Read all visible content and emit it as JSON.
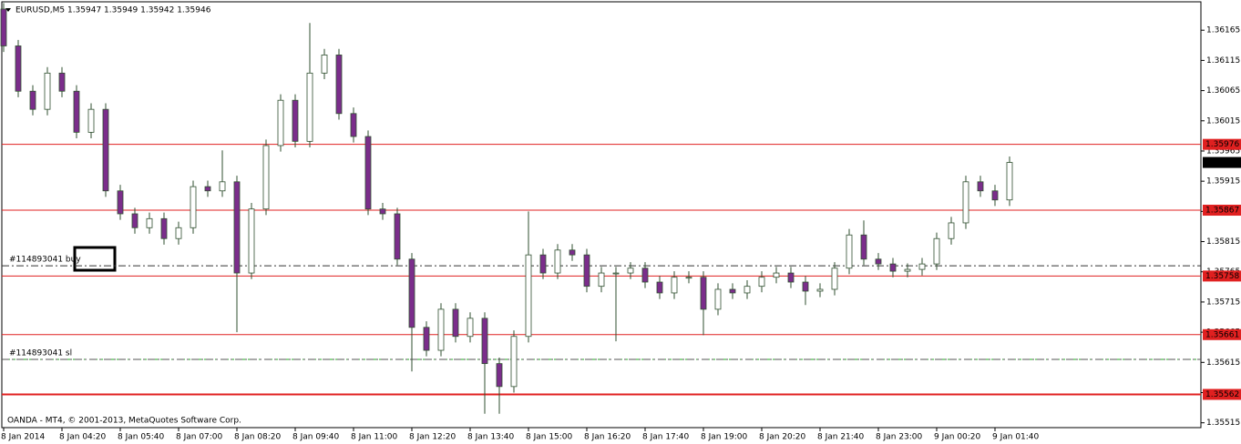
{
  "chart_data": {
    "type": "candlestick",
    "title": "EURUSD,M5  1.35947 1.35949 1.35942 1.35946",
    "footer": "OANDA - MT4, © 2001-2013, MetaQuotes Software Corp.",
    "categories": [
      "8 Jan 2014",
      null,
      null,
      null,
      "8 Jan 04:20",
      null,
      null,
      null,
      "8 Jan 05:40",
      null,
      null,
      null,
      "8 Jan 07:00",
      null,
      null,
      null,
      "8 Jan 08:20",
      null,
      null,
      null,
      "8 Jan 09:40",
      null,
      null,
      null,
      "8 Jan 11:00",
      null,
      null,
      null,
      "8 Jan 12:20",
      null,
      null,
      null,
      "8 Jan 13:40",
      null,
      null,
      null,
      "8 Jan 15:00",
      null,
      null,
      null,
      "8 Jan 16:20",
      null,
      null,
      null,
      "8 Jan 17:40",
      null,
      null,
      null,
      "8 Jan 19:00",
      null,
      null,
      null,
      "8 Jan 20:20",
      null,
      null,
      null,
      "8 Jan 21:40",
      null,
      null,
      null,
      "8 Jan 23:00",
      null,
      null,
      null,
      "9 Jan 00:20",
      null,
      null,
      null,
      "9 Jan 01:40",
      null
    ],
    "open": [
      1.362,
      1.36139,
      1.36064,
      1.36034,
      1.36094,
      1.36064,
      1.35996,
      1.36034,
      1.35899,
      1.35861,
      1.35838,
      1.35853,
      1.3582,
      1.35838,
      1.35906,
      1.35899,
      1.35914,
      1.35763,
      1.35869,
      1.35974,
      1.36049,
      1.35981,
      1.36094,
      1.36124,
      1.36027,
      1.35989,
      1.35869,
      1.35861,
      1.35786,
      1.35673,
      1.35635,
      1.35703,
      1.35658,
      1.35688,
      1.35613,
      1.35575,
      1.35658,
      1.35793,
      1.35763,
      1.35801,
      1.35793,
      1.35741,
      1.35763,
      1.35763,
      1.35771,
      1.35748,
      1.3573,
      1.35756,
      1.35756,
      1.35703,
      1.35736,
      1.3573,
      1.35741,
      1.35756,
      1.35763,
      1.35748,
      1.35733,
      1.35736,
      1.35771,
      1.35826,
      1.35786,
      1.35778,
      1.35766,
      1.35769,
      1.35778,
      1.3582,
      1.35846,
      1.35914,
      1.35899,
      1.35884
    ],
    "high": [
      1.3621,
      1.36149,
      1.36074,
      1.36104,
      1.36104,
      1.36074,
      1.36044,
      1.36044,
      1.35909,
      1.35871,
      1.35863,
      1.35863,
      1.35848,
      1.35916,
      1.35916,
      1.35966,
      1.35924,
      1.35879,
      1.35984,
      1.36059,
      1.36059,
      1.36177,
      1.36134,
      1.36134,
      1.36037,
      1.35999,
      1.35879,
      1.35871,
      1.35796,
      1.35683,
      1.35713,
      1.35713,
      1.35698,
      1.35698,
      1.35623,
      1.35668,
      1.35865,
      1.35803,
      1.35811,
      1.35811,
      1.35803,
      1.35773,
      1.35773,
      1.35781,
      1.35781,
      1.35758,
      1.35766,
      1.35766,
      1.35766,
      1.35746,
      1.35746,
      1.35751,
      1.35766,
      1.35773,
      1.35773,
      1.35758,
      1.35746,
      1.35781,
      1.35836,
      1.3585,
      1.35796,
      1.35788,
      1.35779,
      1.35788,
      1.3583,
      1.35856,
      1.35924,
      1.35924,
      1.35909,
      1.35956
    ],
    "low": [
      1.36129,
      1.36054,
      1.36024,
      1.36024,
      1.36054,
      1.35986,
      1.35986,
      1.35889,
      1.35851,
      1.35828,
      1.35828,
      1.3581,
      1.3581,
      1.35828,
      1.35889,
      1.35889,
      1.35665,
      1.35753,
      1.35859,
      1.35964,
      1.35971,
      1.35971,
      1.36084,
      1.36017,
      1.35979,
      1.35859,
      1.35851,
      1.35776,
      1.356,
      1.35625,
      1.35625,
      1.35648,
      1.35648,
      1.3553,
      1.3553,
      1.35565,
      1.35648,
      1.35753,
      1.35753,
      1.35783,
      1.35731,
      1.35731,
      1.3565,
      1.35753,
      1.35738,
      1.3572,
      1.3572,
      1.35746,
      1.3566,
      1.35693,
      1.3572,
      1.3572,
      1.35731,
      1.35746,
      1.35738,
      1.3571,
      1.35723,
      1.35726,
      1.35761,
      1.35776,
      1.35768,
      1.35756,
      1.35756,
      1.35759,
      1.35768,
      1.3581,
      1.35836,
      1.35889,
      1.35874,
      1.35874
    ],
    "close": [
      1.36139,
      1.36064,
      1.36034,
      1.36094,
      1.36064,
      1.35996,
      1.36034,
      1.35899,
      1.35861,
      1.35838,
      1.35853,
      1.3582,
      1.35838,
      1.35906,
      1.35899,
      1.35914,
      1.35763,
      1.35869,
      1.35974,
      1.36049,
      1.35981,
      1.36094,
      1.36124,
      1.36027,
      1.35989,
      1.35869,
      1.35861,
      1.35786,
      1.35673,
      1.35635,
      1.35703,
      1.35658,
      1.35688,
      1.35613,
      1.35575,
      1.35658,
      1.35793,
      1.35763,
      1.35801,
      1.35793,
      1.35741,
      1.35763,
      1.35763,
      1.35771,
      1.35748,
      1.3573,
      1.35756,
      1.35756,
      1.35703,
      1.35736,
      1.3573,
      1.35741,
      1.35756,
      1.35763,
      1.35748,
      1.35733,
      1.35736,
      1.35771,
      1.35826,
      1.35786,
      1.35778,
      1.35766,
      1.35769,
      1.35778,
      1.3582,
      1.35846,
      1.35914,
      1.35899,
      1.35884,
      1.35946
    ],
    "up_color": "#ffffff",
    "down_color": "#7b2d8b",
    "wick_color": "#2f4f2f",
    "ylim": [
      1.35507,
      1.36212
    ],
    "yticks": [
      1.36165,
      1.36115,
      1.36065,
      1.36015,
      1.35965,
      1.35915,
      1.35865,
      1.35815,
      1.35765,
      1.35715,
      1.35665,
      1.35615,
      1.35565,
      1.35515
    ],
    "levels": [
      {
        "value": 1.35976,
        "color": "#e02020"
      },
      {
        "value": 1.35867,
        "color": "#e02020"
      },
      {
        "value": 1.35758,
        "color": "#e02020"
      },
      {
        "value": 1.35661,
        "color": "#e02020"
      },
      {
        "value": 1.35562,
        "color": "#e02020"
      }
    ],
    "orders": [
      {
        "label": "#114893041 buy",
        "value": 1.35775,
        "color": "#333333"
      },
      {
        "label": "#114893041 sl",
        "value": 1.3562,
        "color": "#22aa22"
      }
    ],
    "bid": 1.35946
  }
}
